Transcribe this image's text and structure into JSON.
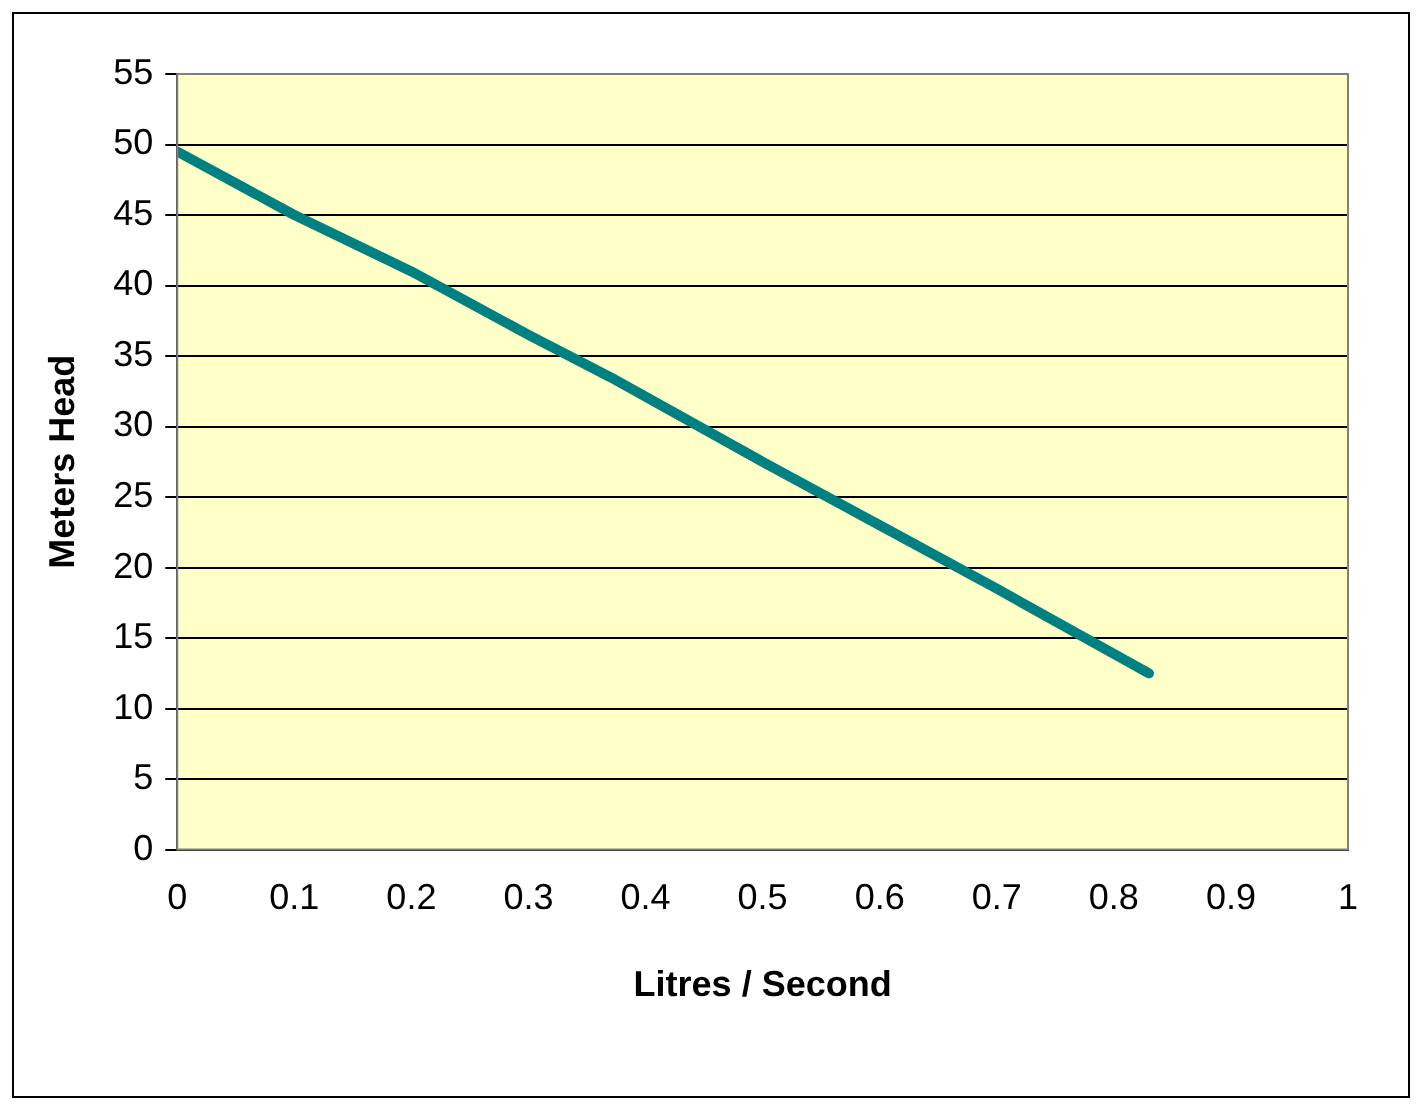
{
  "chart_data": {
    "type": "line",
    "xlabel": "Litres / Second",
    "ylabel": "Meters Head",
    "x": [
      0,
      0.1,
      0.2,
      0.3,
      0.37,
      0.5,
      0.6,
      0.7,
      0.83
    ],
    "series": [
      {
        "color": "#008080",
        "values": [
          49.5,
          45,
          41,
          36.5,
          33.5,
          27.5,
          23,
          18.5,
          12.5
        ]
      }
    ],
    "xlim": [
      0,
      1
    ],
    "xticks": [
      0,
      0.1,
      0.2,
      0.3,
      0.4,
      0.5,
      0.6,
      0.7,
      0.8,
      0.9,
      1
    ],
    "ylim": [
      0,
      55
    ],
    "yticks": [
      0,
      5,
      10,
      15,
      20,
      25,
      30,
      35,
      40,
      45,
      50,
      55
    ],
    "grid": "y",
    "legend": false,
    "marker": "none",
    "line_style": "solid"
  }
}
